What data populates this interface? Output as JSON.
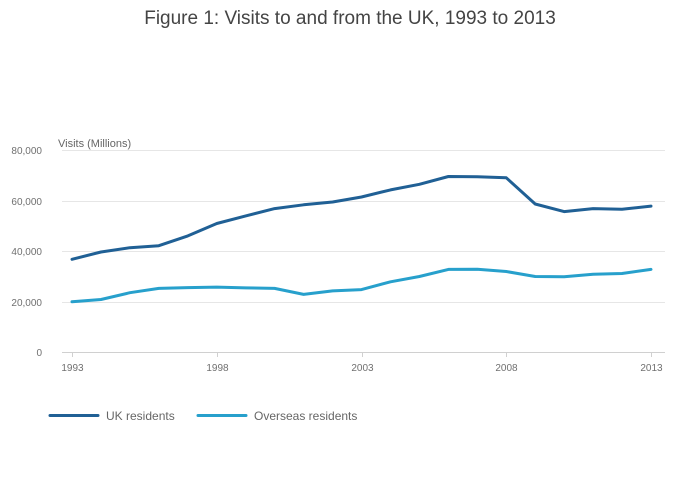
{
  "chart_data": {
    "type": "line",
    "title": "Figure 1: Visits to and from the UK, 1993 to 2013",
    "xlabel": "",
    "ylabel": "Visits (Millions)",
    "x": [
      1993,
      1994,
      1995,
      1996,
      1997,
      1998,
      1999,
      2000,
      2001,
      2002,
      2003,
      2004,
      2005,
      2006,
      2007,
      2008,
      2009,
      2010,
      2011,
      2012,
      2013
    ],
    "xlim": [
      1993,
      2013
    ],
    "ylim": [
      0,
      80000
    ],
    "x_ticks": [
      1993,
      1998,
      2003,
      2008,
      2013
    ],
    "y_ticks": [
      0,
      20000,
      40000,
      60000,
      80000
    ],
    "x_tick_labels": [
      "1993",
      "1998",
      "2003",
      "2008",
      "2013"
    ],
    "y_tick_labels": [
      "0",
      "20,000",
      "40,000",
      "60,000",
      "80,000"
    ],
    "grid": true,
    "legend_position": "bottom-left",
    "series": [
      {
        "name": "UK residents",
        "color": "#206095",
        "values": [
          36700,
          39600,
          41300,
          42100,
          46000,
          50900,
          53900,
          56800,
          58300,
          59400,
          61400,
          64200,
          66400,
          69500,
          69400,
          69000,
          58600,
          55600,
          56800,
          56500,
          57800
        ]
      },
      {
        "name": "Overseas residents",
        "color": "#27a0cc",
        "values": [
          19900,
          20800,
          23500,
          25200,
          25500,
          25700,
          25400,
          25200,
          22800,
          24200,
          24700,
          27800,
          29900,
          32700,
          32800,
          31900,
          29900,
          29800,
          30800,
          31100,
          32700
        ]
      }
    ]
  }
}
